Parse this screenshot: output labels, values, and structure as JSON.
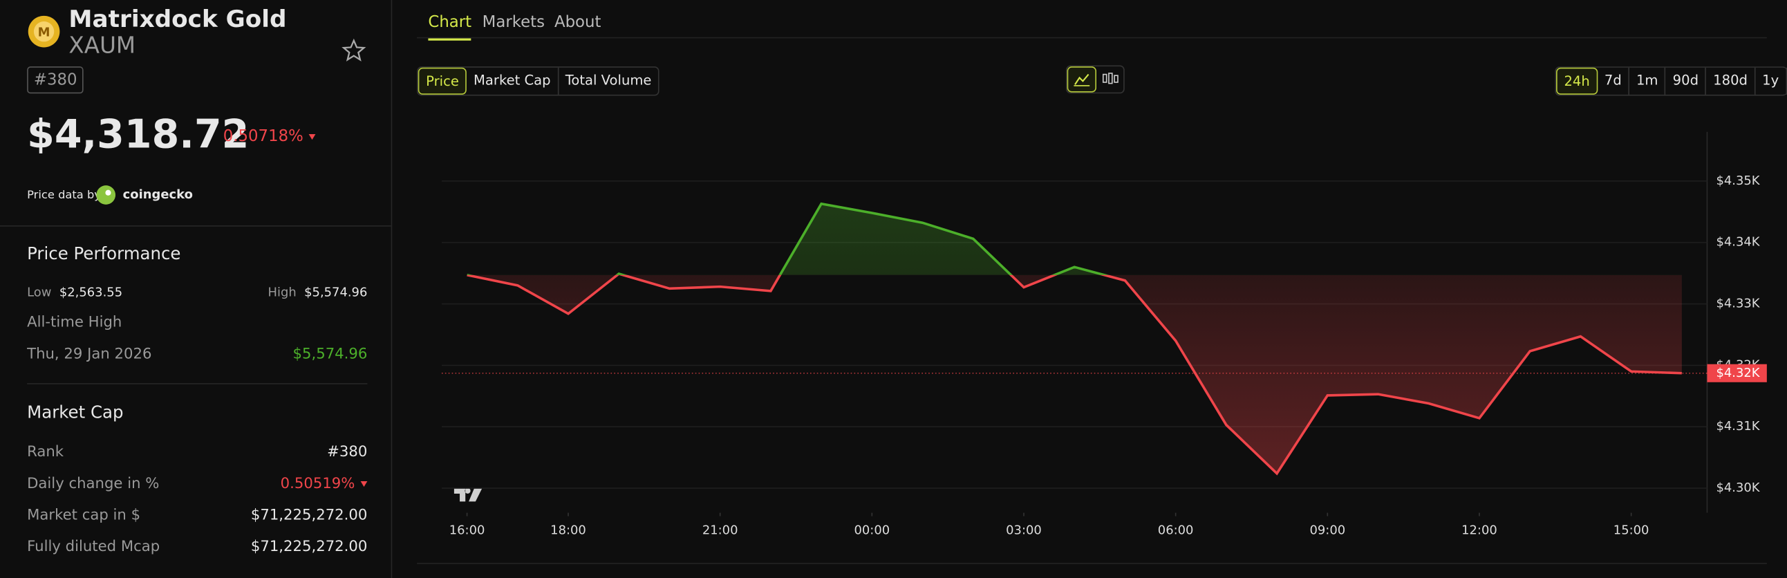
{
  "header": {
    "name": "Matrixdock Gold",
    "symbol": "XAUM",
    "rank": "#380",
    "price": "$4,318.72",
    "change": "0.50718%",
    "price_data_by": "Price data by",
    "source": "coingecko"
  },
  "performance": {
    "title": "Price Performance",
    "low_label": "Low",
    "low": "$2,563.55",
    "high_label": "High",
    "high": "$5,574.96",
    "ath_label": "All-time High",
    "ath_date": "Thu, 29 Jan 2026",
    "ath_value": "$5,574.96"
  },
  "market_cap": {
    "title": "Market Cap",
    "rows": [
      [
        "Rank",
        "#380"
      ],
      [
        "Daily change in %",
        "0.50519%"
      ],
      [
        "Market cap in $",
        "$71,225,272.00"
      ],
      [
        "Fully diluted Mcap",
        "$71,225,272.00"
      ]
    ]
  },
  "tabs": [
    "Chart",
    "Markets",
    "About"
  ],
  "metric_tabs": [
    "Price",
    "Market Cap",
    "Total Volume"
  ],
  "ranges": [
    "24h",
    "7d",
    "1m",
    "90d",
    "180d",
    "1y"
  ],
  "chart_data": {
    "type": "line",
    "x": [
      0,
      1,
      2,
      3,
      4,
      5,
      6,
      7,
      8,
      9,
      10,
      11,
      12,
      13,
      14,
      15,
      16,
      17,
      18,
      19,
      20,
      21,
      22,
      23,
      24
    ],
    "values": [
      4334.7,
      4333.0,
      4328.4,
      4334.9,
      4332.5,
      4332.8,
      4332.1,
      4346.3,
      4344.8,
      4343.2,
      4340.6,
      4332.7,
      4336.0,
      4333.8,
      4324.0,
      4310.3,
      4302.4,
      4315.1,
      4315.3,
      4313.8,
      4311.4,
      4322.3,
      4324.7,
      4319.0,
      4318.72
    ],
    "up_color": "#4caf2a",
    "down_color": "#f0454a",
    "xlim": [
      -0.5,
      24.5
    ],
    "xticks": [
      {
        "value": 0,
        "label": "16:00"
      },
      {
        "value": 2,
        "label": "18:00"
      },
      {
        "value": 5,
        "label": "21:00"
      },
      {
        "value": 8,
        "label": "00:00"
      },
      {
        "value": 11,
        "label": "03:00"
      },
      {
        "value": 14,
        "label": "06:00"
      },
      {
        "value": 17,
        "label": "09:00"
      },
      {
        "value": 20,
        "label": "12:00"
      },
      {
        "value": 23,
        "label": "15:00"
      }
    ],
    "ylim": [
      4296,
      4358
    ],
    "yticks": [
      {
        "value": 4300,
        "label": "$4.30K"
      },
      {
        "value": 4310,
        "label": "$4.31K"
      },
      {
        "value": 4320,
        "label": "$4.32K"
      },
      {
        "value": 4330,
        "label": "$4.33K"
      },
      {
        "value": 4340,
        "label": "$4.34K"
      },
      {
        "value": 4350,
        "label": "$4.35K"
      }
    ],
    "current_price": {
      "value": 4318.72,
      "label": "$4.32K"
    },
    "grid": true
  }
}
